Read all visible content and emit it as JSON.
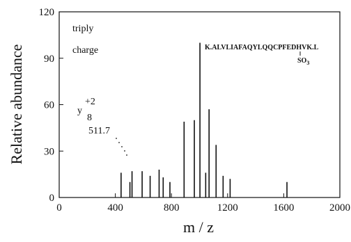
{
  "chart_data": {
    "type": "bar",
    "xlabel": "m / z",
    "ylabel": "Relative abundance",
    "xlim": [
      0,
      2000
    ],
    "ylim": [
      0,
      120
    ],
    "x_ticks": [
      0,
      400,
      800,
      1200,
      1600,
      2000
    ],
    "y_ticks": [
      0,
      30,
      60,
      90,
      120
    ],
    "grid": false,
    "peaks": [
      {
        "x": 441,
        "y": 16
      },
      {
        "x": 504,
        "y": 10
      },
      {
        "x": 519,
        "y": 17
      },
      {
        "x": 591,
        "y": 17
      },
      {
        "x": 648,
        "y": 14
      },
      {
        "x": 712,
        "y": 18
      },
      {
        "x": 741,
        "y": 13
      },
      {
        "x": 789,
        "y": 10
      },
      {
        "x": 890,
        "y": 49
      },
      {
        "x": 963,
        "y": 50
      },
      {
        "x": 1003,
        "y": 100
      },
      {
        "x": 1044,
        "y": 16
      },
      {
        "x": 1068,
        "y": 57
      },
      {
        "x": 1118,
        "y": 34
      },
      {
        "x": 1168,
        "y": 14
      },
      {
        "x": 1218,
        "y": 12
      },
      {
        "x": 1623,
        "y": 10
      }
    ],
    "annotations": {
      "charge_line1": "triply",
      "charge_line2": "charge",
      "peptide": "K.ALVLIAFAQYLQQCPFEDHVK.L",
      "modification": "SO",
      "modification_sub": "3",
      "ion_base": "y",
      "ion_sup": "+2",
      "ion_sub": "8",
      "ion_mz": "511.7"
    }
  }
}
